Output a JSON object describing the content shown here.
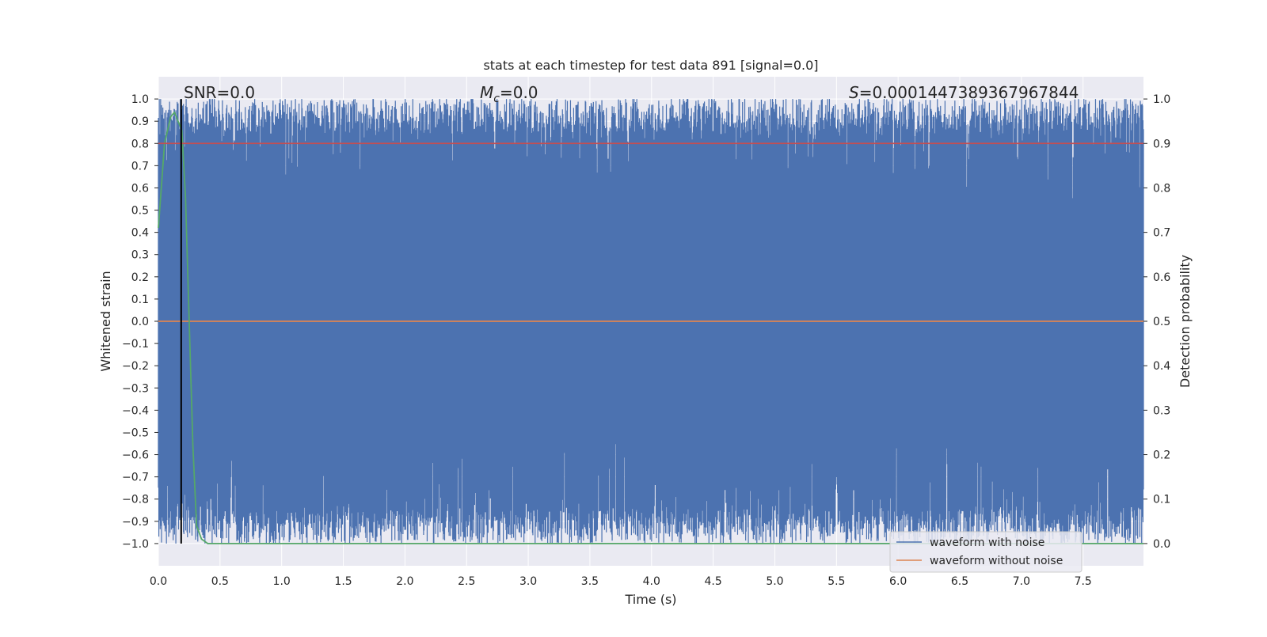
{
  "chart_data": {
    "type": "line",
    "title": "stats at each timestep for test data 891 [signal=0.0]",
    "xlabel": "Time (s)",
    "ylabel_left": "Whitened strain",
    "ylabel_right": "Detection probability",
    "xlim": [
      0.0,
      7.99
    ],
    "ylim_left": [
      -1.1,
      1.1
    ],
    "ylim_right": [
      -0.05,
      1.05
    ],
    "x_ticks": [
      "0.0",
      "0.5",
      "1.0",
      "1.5",
      "2.0",
      "2.5",
      "3.0",
      "3.5",
      "4.0",
      "4.5",
      "5.0",
      "5.5",
      "6.0",
      "6.5",
      "7.0",
      "7.5"
    ],
    "y_ticks_left": [
      "1.0",
      "0.9",
      "0.8",
      "0.7",
      "0.6",
      "0.5",
      "0.4",
      "0.3",
      "0.2",
      "0.1",
      "0.0",
      "−0.1",
      "−0.2",
      "−0.3",
      "−0.4",
      "−0.5",
      "−0.6",
      "−0.7",
      "−0.8",
      "−0.9",
      "−1.0"
    ],
    "y_ticks_right": [
      "1.0",
      "0.9",
      "0.8",
      "0.7",
      "0.6",
      "0.5",
      "0.4",
      "0.3",
      "0.2",
      "0.1",
      "0.0"
    ],
    "grid": true,
    "legend_position": "bottom-right",
    "annotations": {
      "snr": "SNR=0.0",
      "mc_symbol": "M",
      "mc_sub": "c",
      "mc_value": "=0.0",
      "s_symbol": "S",
      "s_value": "=0.0001447389367967844"
    },
    "series": [
      {
        "name": "waveform with noise",
        "axis": "left",
        "color": "#4c72b0",
        "description_range": [
          -1.0,
          1.0
        ],
        "envelope": {
          "upper_typical": 0.85,
          "upper_max": 1.0,
          "lower_typical": -0.85,
          "lower_max": -1.0
        }
      },
      {
        "name": "waveform without noise",
        "axis": "left",
        "color": "#dd8452",
        "x": [
          0.0,
          7.99
        ],
        "y": [
          0.0,
          0.0
        ]
      },
      {
        "axis": "right",
        "color": "#55a868",
        "x": [
          0.0,
          0.05,
          0.1,
          0.13,
          0.16,
          0.19,
          0.22,
          0.25,
          0.28,
          0.31,
          0.35,
          0.4,
          7.99
        ],
        "y": [
          0.71,
          0.9,
          0.96,
          0.97,
          0.95,
          0.93,
          0.78,
          0.5,
          0.22,
          0.04,
          0.01,
          0.0,
          0.0
        ]
      },
      {
        "axis": "right",
        "color": "#c44e52",
        "x": [
          0.0,
          7.99
        ],
        "y": [
          0.9,
          0.9
        ]
      }
    ],
    "vertical_lines": [
      {
        "x": 0.185,
        "color": "#000000"
      }
    ]
  }
}
